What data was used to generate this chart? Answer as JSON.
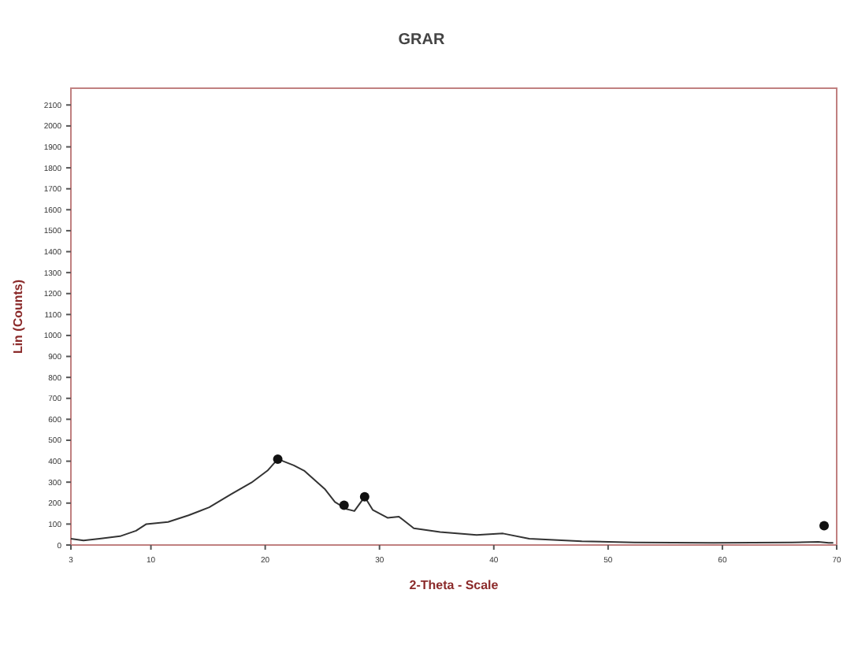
{
  "chart_data": {
    "type": "line",
    "title": "GRAR",
    "xlabel": "2-Theta - Scale",
    "ylabel": "Lin (Counts)",
    "xlim": [
      3,
      70
    ],
    "xticks": [
      3,
      10,
      20,
      30,
      40,
      50,
      60,
      70
    ],
    "ylim": [
      0,
      2180
    ],
    "yticks": [
      0,
      100,
      200,
      300,
      400,
      500,
      600,
      700,
      800,
      900,
      1000,
      1100,
      1200,
      1300,
      1400,
      1500,
      1600,
      1700,
      1800,
      1900,
      2000,
      2100
    ],
    "series": [
      {
        "color": "#333333",
        "marker": "none",
        "x": [
          3.0,
          4.1,
          5.5,
          7.3,
          8.7,
          9.6,
          11.5,
          13.3,
          15.1,
          17.0,
          18.8,
          20.2,
          21.1,
          22.5,
          23.4,
          25.2,
          26.1,
          27.1,
          27.8,
          28.7,
          29.4,
          30.7,
          31.7,
          33.0,
          35.3,
          38.5,
          40.8,
          43.1,
          47.7,
          52.3,
          59.2,
          66.1,
          68.4,
          69.3,
          69.7
        ],
        "values": [
          30,
          22,
          30,
          42,
          68,
          100,
          110,
          142,
          180,
          242,
          298,
          355,
          410,
          380,
          355,
          268,
          205,
          172,
          162,
          230,
          168,
          130,
          135,
          80,
          62,
          48,
          55,
          30,
          18,
          12,
          10,
          12,
          15,
          10,
          10
        ]
      },
      {
        "type": "scatter",
        "color": "#111111",
        "marker": "circle",
        "x": [
          21.1,
          26.9,
          28.7,
          68.9
        ],
        "values": [
          410,
          190,
          230,
          92
        ]
      }
    ]
  }
}
